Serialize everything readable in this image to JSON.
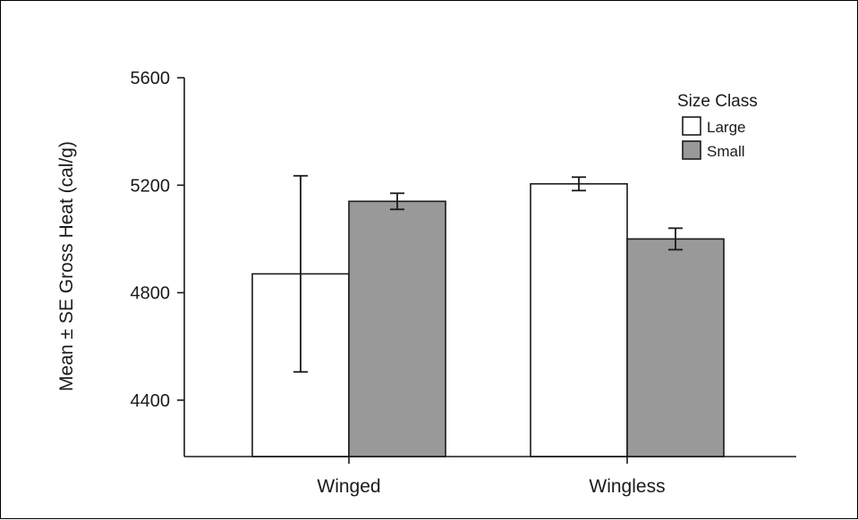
{
  "chart_data": {
    "type": "bar",
    "title": "",
    "xlabel": "",
    "ylabel": "Mean ± SE Gross Heat (cal/g)",
    "categories": [
      "Winged",
      "Wingless"
    ],
    "series": [
      {
        "name": "Large",
        "values": [
          4870,
          5205
        ],
        "error_low": [
          4505,
          5180
        ],
        "error_high": [
          5235,
          5230
        ],
        "color": "#ffffff"
      },
      {
        "name": "Small",
        "values": [
          5140,
          5000
        ],
        "error_low": [
          5110,
          4960
        ],
        "error_high": [
          5170,
          5040
        ],
        "color": "#999999"
      }
    ],
    "ylim": [
      4190,
      5600
    ],
    "yticks": [
      "5600",
      "5200",
      "4800",
      "4400"
    ],
    "legend": {
      "title": "Size Class",
      "position": "top-right"
    },
    "grid": false
  }
}
